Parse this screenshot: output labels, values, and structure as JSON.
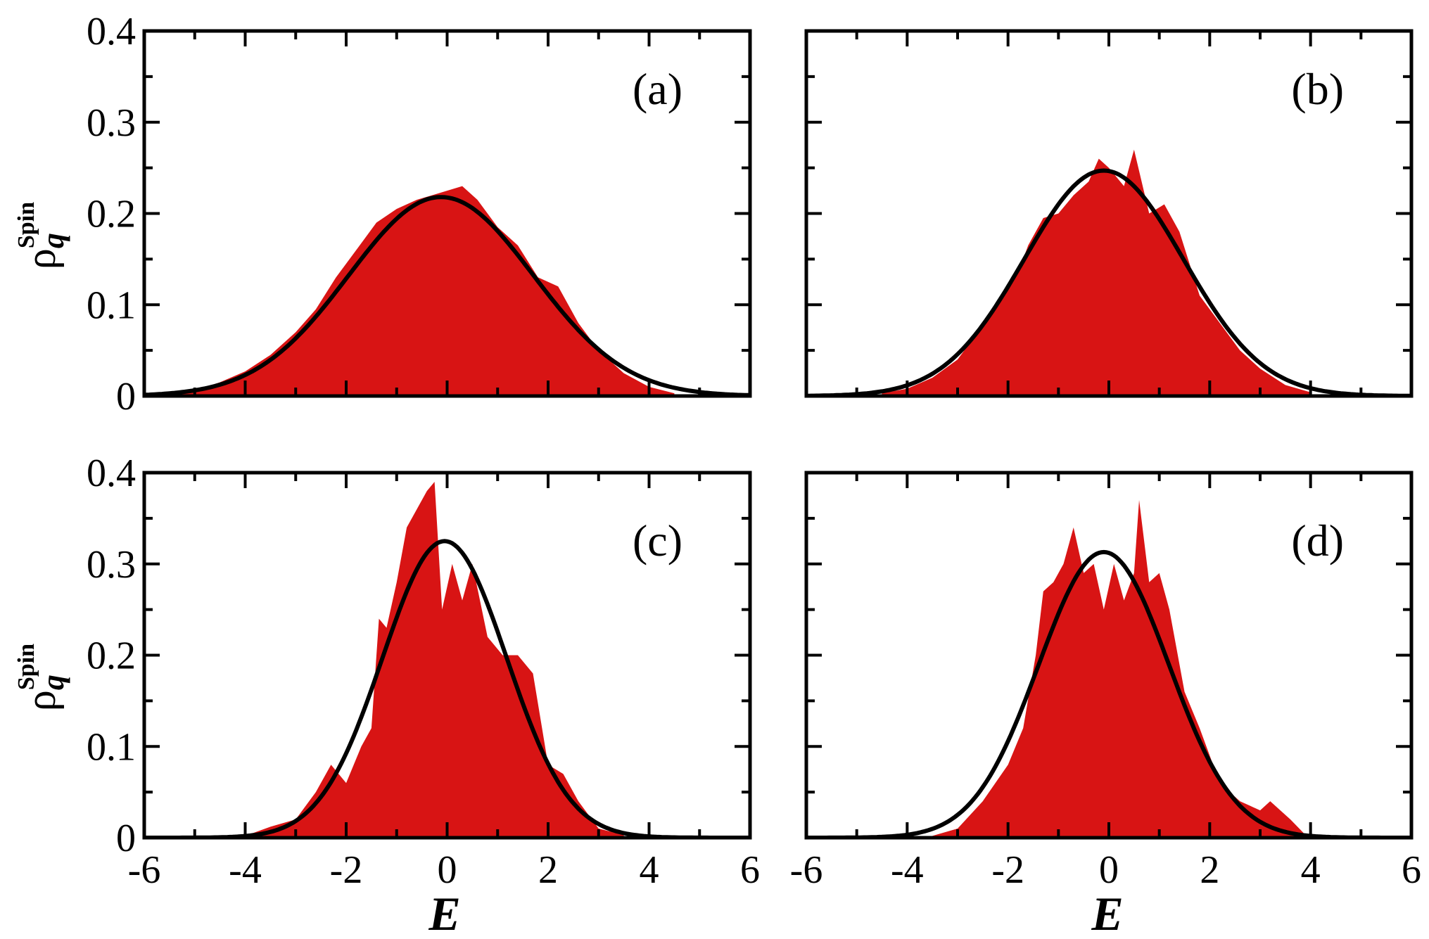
{
  "figure": {
    "ylabel_base": "ρ",
    "ylabel_sub": "q",
    "ylabel_sup": "Spin",
    "xlabel": "E"
  },
  "colors": {
    "histogram": "#d81414",
    "fit_curve": "#000000",
    "frame": "#000000"
  },
  "chart_data": [
    {
      "type": "area",
      "panel": "(a)",
      "xlim": [
        -6,
        6
      ],
      "ylim": [
        0,
        0.4
      ],
      "xticks": [
        "-6",
        "-4",
        "-2",
        "0",
        "2",
        "4",
        "6"
      ],
      "yticks": [
        "0",
        "0.1",
        "0.2",
        "0.3",
        "0.4"
      ],
      "grid": false,
      "series": [
        {
          "kind": "histogram",
          "x": [
            -5.5,
            -5.0,
            -4.5,
            -4.0,
            -3.5,
            -3.0,
            -2.6,
            -2.2,
            -1.8,
            -1.4,
            -1.0,
            -0.6,
            -0.3,
            0.0,
            0.3,
            0.6,
            1.0,
            1.4,
            1.8,
            2.2,
            2.6,
            3.0,
            3.5,
            4.0,
            4.5
          ],
          "y": [
            0.002,
            0.006,
            0.015,
            0.027,
            0.045,
            0.07,
            0.095,
            0.13,
            0.16,
            0.19,
            0.205,
            0.215,
            0.22,
            0.225,
            0.23,
            0.215,
            0.185,
            0.165,
            0.13,
            0.12,
            0.08,
            0.05,
            0.025,
            0.01,
            0.003
          ]
        },
        {
          "kind": "gaussian",
          "mean": -0.12,
          "sigma": 1.83,
          "peak": 0.218
        }
      ]
    },
    {
      "type": "area",
      "panel": "(b)",
      "xlim": [
        -6,
        6
      ],
      "ylim": [
        0,
        0.4
      ],
      "xticks": [
        "-6",
        "-4",
        "-2",
        "0",
        "2",
        "4",
        "6"
      ],
      "yticks": [
        "0",
        "0.1",
        "0.2",
        "0.3",
        "0.4"
      ],
      "grid": false,
      "series": [
        {
          "kind": "histogram",
          "x": [
            -4.5,
            -4.0,
            -3.5,
            -3.0,
            -2.6,
            -2.2,
            -1.8,
            -1.6,
            -1.3,
            -1.0,
            -0.7,
            -0.4,
            -0.2,
            0.0,
            0.3,
            0.5,
            0.8,
            1.1,
            1.4,
            1.8,
            2.2,
            2.6,
            3.0,
            3.5,
            4.0
          ],
          "y": [
            0.003,
            0.008,
            0.02,
            0.04,
            0.07,
            0.1,
            0.135,
            0.165,
            0.195,
            0.2,
            0.22,
            0.235,
            0.26,
            0.25,
            0.23,
            0.27,
            0.2,
            0.21,
            0.18,
            0.11,
            0.08,
            0.05,
            0.03,
            0.012,
            0.004
          ]
        },
        {
          "kind": "gaussian",
          "mean": -0.1,
          "sigma": 1.58,
          "peak": 0.247
        }
      ]
    },
    {
      "type": "area",
      "panel": "(c)",
      "xlim": [
        -6,
        6
      ],
      "ylim": [
        0,
        0.4
      ],
      "xticks": [
        "-6",
        "-4",
        "-2",
        "0",
        "2",
        "4",
        "6"
      ],
      "yticks": [
        "0",
        "0.1",
        "0.2",
        "0.3",
        "0.4"
      ],
      "grid": false,
      "series": [
        {
          "kind": "histogram",
          "x": [
            -4.0,
            -3.5,
            -3.0,
            -2.6,
            -2.3,
            -2.0,
            -1.7,
            -1.5,
            -1.35,
            -1.2,
            -1.0,
            -0.8,
            -0.6,
            -0.4,
            -0.25,
            -0.1,
            0.1,
            0.3,
            0.5,
            0.8,
            1.1,
            1.4,
            1.7,
            2.0,
            2.3,
            2.6,
            3.0,
            3.5
          ],
          "y": [
            0.002,
            0.012,
            0.02,
            0.05,
            0.08,
            0.06,
            0.1,
            0.12,
            0.24,
            0.23,
            0.28,
            0.34,
            0.36,
            0.38,
            0.39,
            0.25,
            0.3,
            0.26,
            0.3,
            0.22,
            0.2,
            0.2,
            0.18,
            0.08,
            0.07,
            0.04,
            0.01,
            0.003
          ]
        },
        {
          "kind": "gaussian",
          "mean": -0.05,
          "sigma": 1.23,
          "peak": 0.325
        }
      ]
    },
    {
      "type": "area",
      "panel": "(d)",
      "xlim": [
        -6,
        6
      ],
      "ylim": [
        0,
        0.4
      ],
      "xticks": [
        "-6",
        "-4",
        "-2",
        "0",
        "2",
        "4",
        "6"
      ],
      "yticks": [
        "0",
        "0.1",
        "0.2",
        "0.3",
        "0.4"
      ],
      "grid": false,
      "series": [
        {
          "kind": "histogram",
          "x": [
            -3.5,
            -3.0,
            -2.5,
            -2.0,
            -1.7,
            -1.45,
            -1.3,
            -1.1,
            -0.9,
            -0.7,
            -0.5,
            -0.3,
            -0.1,
            0.1,
            0.3,
            0.5,
            0.6,
            0.8,
            1.0,
            1.2,
            1.5,
            1.8,
            2.2,
            2.6,
            3.0,
            3.2,
            3.4,
            3.6,
            3.9
          ],
          "y": [
            0.002,
            0.01,
            0.04,
            0.08,
            0.12,
            0.2,
            0.27,
            0.28,
            0.3,
            0.34,
            0.29,
            0.3,
            0.25,
            0.3,
            0.26,
            0.29,
            0.37,
            0.28,
            0.29,
            0.25,
            0.16,
            0.12,
            0.06,
            0.04,
            0.03,
            0.04,
            0.03,
            0.02,
            0.003
          ]
        },
        {
          "kind": "gaussian",
          "mean": -0.1,
          "sigma": 1.29,
          "peak": 0.313
        }
      ]
    }
  ]
}
